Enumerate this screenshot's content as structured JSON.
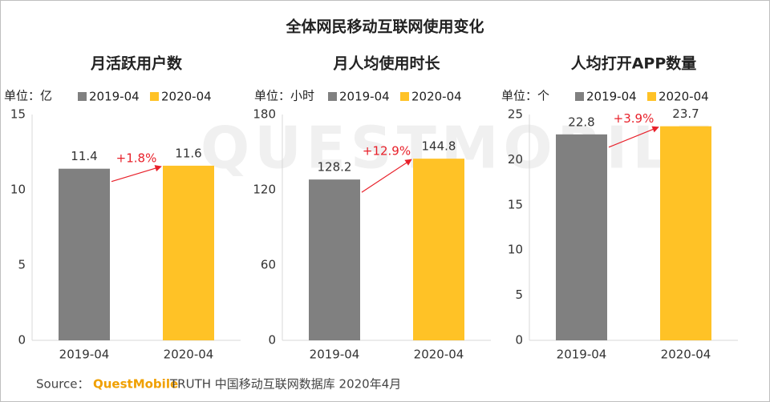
{
  "title": "全体网民移动互联网使用变化",
  "watermark": "QUESTMOBILE",
  "source": {
    "prefix": "Source：",
    "brand": "QuestMobile",
    "text": "TRUTH 中国移动互联网数据库 2020年4月"
  },
  "chart_data": [
    {
      "type": "bar",
      "title": "月活跃用户数",
      "unit": "单位：亿",
      "categories": [
        "2019-04",
        "2020-04"
      ],
      "values": [
        11.4,
        11.6
      ],
      "colors": [
        "#808080",
        "#ffc226"
      ],
      "annotation": "+1.8%",
      "ylim": [
        0,
        15
      ],
      "yticks": [
        0,
        5,
        10,
        15
      ]
    },
    {
      "type": "bar",
      "title": "月人均使用时长",
      "unit": "单位：小时",
      "categories": [
        "2019-04",
        "2020-04"
      ],
      "values": [
        128.2,
        144.8
      ],
      "colors": [
        "#808080",
        "#ffc226"
      ],
      "annotation": "+12.9%",
      "ylim": [
        0,
        180
      ],
      "yticks": [
        0,
        60,
        120,
        180
      ]
    },
    {
      "type": "bar",
      "title": "人均打开APP数量",
      "unit": "单位：个",
      "categories": [
        "2019-04",
        "2020-04"
      ],
      "values": [
        22.8,
        23.7
      ],
      "colors": [
        "#808080",
        "#ffc226"
      ],
      "annotation": "+3.9%",
      "ylim": [
        0,
        25
      ],
      "yticks": [
        0,
        5,
        10,
        15,
        20,
        25
      ]
    }
  ]
}
